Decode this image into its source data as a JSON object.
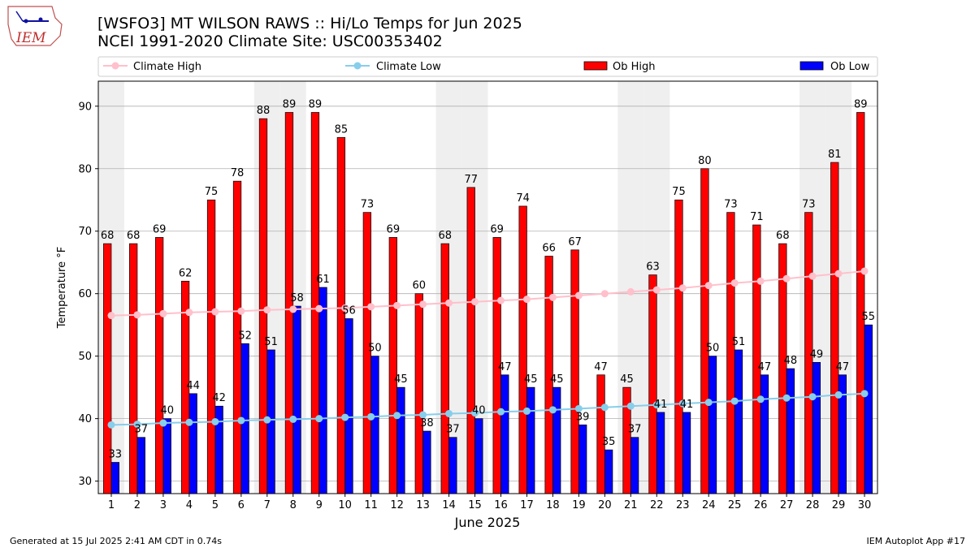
{
  "header": {
    "title_line1": "[WSFO3] MT WILSON RAWS :: Hi/Lo Temps for Jun 2025",
    "title_line2": "NCEI 1991-2020 Climate Site: USC00353402",
    "logo_text": "IEM"
  },
  "footer": {
    "left": "Generated at 15 Jul 2025 2:41 AM CDT in 0.74s",
    "right": "IEM Autoplot App #17"
  },
  "colors": {
    "ob_high": "#ff0000",
    "ob_low": "#0000ff",
    "climate_high": "#ffc0cb",
    "climate_low": "#87ceeb",
    "weekend_band": "#efefef",
    "grid": "#b0b0b0"
  },
  "chart_data": {
    "type": "bar",
    "xlabel": "June 2025",
    "ylabel": "Temperature °F",
    "ylim": [
      28,
      94
    ],
    "yticks": [
      30,
      40,
      50,
      60,
      70,
      80,
      90
    ],
    "grid": "horizontal",
    "legend_placement": "top",
    "categories": [
      "1",
      "2",
      "3",
      "4",
      "5",
      "6",
      "7",
      "8",
      "9",
      "10",
      "11",
      "12",
      "13",
      "14",
      "15",
      "16",
      "17",
      "18",
      "19",
      "20",
      "21",
      "22",
      "23",
      "24",
      "25",
      "26",
      "27",
      "28",
      "29",
      "30"
    ],
    "weekend_days": [
      1,
      7,
      8,
      14,
      15,
      21,
      22,
      28,
      29
    ],
    "series": [
      {
        "name": "Ob High",
        "kind": "bar",
        "values": [
          68,
          68,
          69,
          62,
          75,
          78,
          88,
          89,
          89,
          85,
          73,
          69,
          60,
          68,
          77,
          69,
          74,
          66,
          67,
          47,
          45,
          63,
          75,
          80,
          73,
          71,
          68,
          73,
          81,
          89
        ]
      },
      {
        "name": "Ob Low",
        "kind": "bar",
        "values": [
          33,
          37,
          40,
          44,
          42,
          52,
          51,
          58,
          61,
          56,
          50,
          45,
          38,
          37,
          40,
          47,
          45,
          45,
          39,
          35,
          37,
          41,
          41,
          50,
          51,
          47,
          48,
          49,
          47,
          55
        ]
      },
      {
        "name": "Climate High",
        "kind": "line",
        "values": [
          56.5,
          56.6,
          56.8,
          57.0,
          57.1,
          57.2,
          57.4,
          57.5,
          57.6,
          57.7,
          57.9,
          58.1,
          58.3,
          58.5,
          58.7,
          58.9,
          59.1,
          59.4,
          59.7,
          60.0,
          60.3,
          60.6,
          60.9,
          61.3,
          61.7,
          62.0,
          62.4,
          62.8,
          63.2,
          63.6
        ]
      },
      {
        "name": "Climate Low",
        "kind": "line",
        "values": [
          39.0,
          39.1,
          39.3,
          39.4,
          39.5,
          39.7,
          39.8,
          39.9,
          40.0,
          40.2,
          40.3,
          40.5,
          40.6,
          40.8,
          40.9,
          41.1,
          41.2,
          41.4,
          41.6,
          41.8,
          42.0,
          42.2,
          42.4,
          42.6,
          42.8,
          43.1,
          43.3,
          43.5,
          43.8,
          44.0
        ]
      }
    ]
  }
}
